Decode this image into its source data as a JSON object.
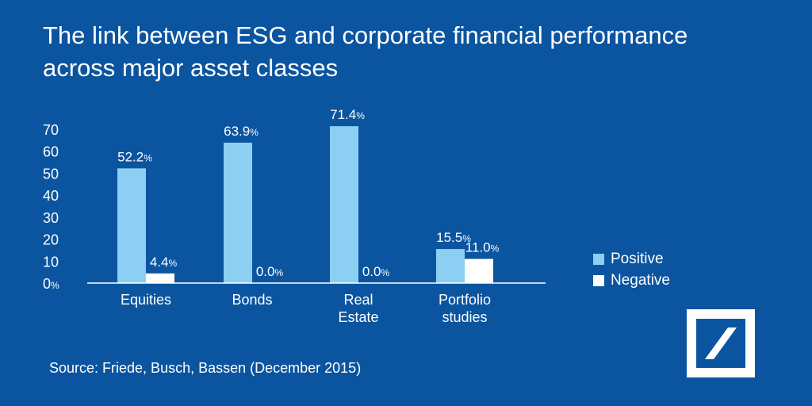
{
  "title": {
    "line1": "The link between ESG and corporate financial performance",
    "line2": "across major asset classes"
  },
  "source": "Source: Friede, Busch, Bassen (December 2015)",
  "colors": {
    "background": "#0b55a0",
    "positive": "#8ccff2",
    "negative": "#ffffff"
  },
  "chart_data": {
    "type": "bar",
    "categories": [
      [
        "Equities"
      ],
      [
        "Bonds"
      ],
      [
        "Real",
        "Estate"
      ],
      [
        "Portfolio",
        "studies"
      ]
    ],
    "series": [
      {
        "name": "Positive",
        "values": [
          52.2,
          63.9,
          71.4,
          15.5
        ],
        "labels": [
          "52.2",
          "63.9",
          "71.4",
          "15.5"
        ],
        "color": "#8ccff2"
      },
      {
        "name": "Negative",
        "values": [
          4.4,
          0.0,
          0.0,
          11.0
        ],
        "labels": [
          "4.4",
          "0.0",
          "0.0",
          "11.0"
        ],
        "color": "#ffffff"
      }
    ],
    "value_suffix": "%",
    "ylim": [
      0,
      70
    ],
    "yticks": [
      0,
      10,
      20,
      30,
      40,
      50,
      60,
      70
    ],
    "zero_tick_suffix": "%",
    "grid": false,
    "legend_position": "right"
  }
}
